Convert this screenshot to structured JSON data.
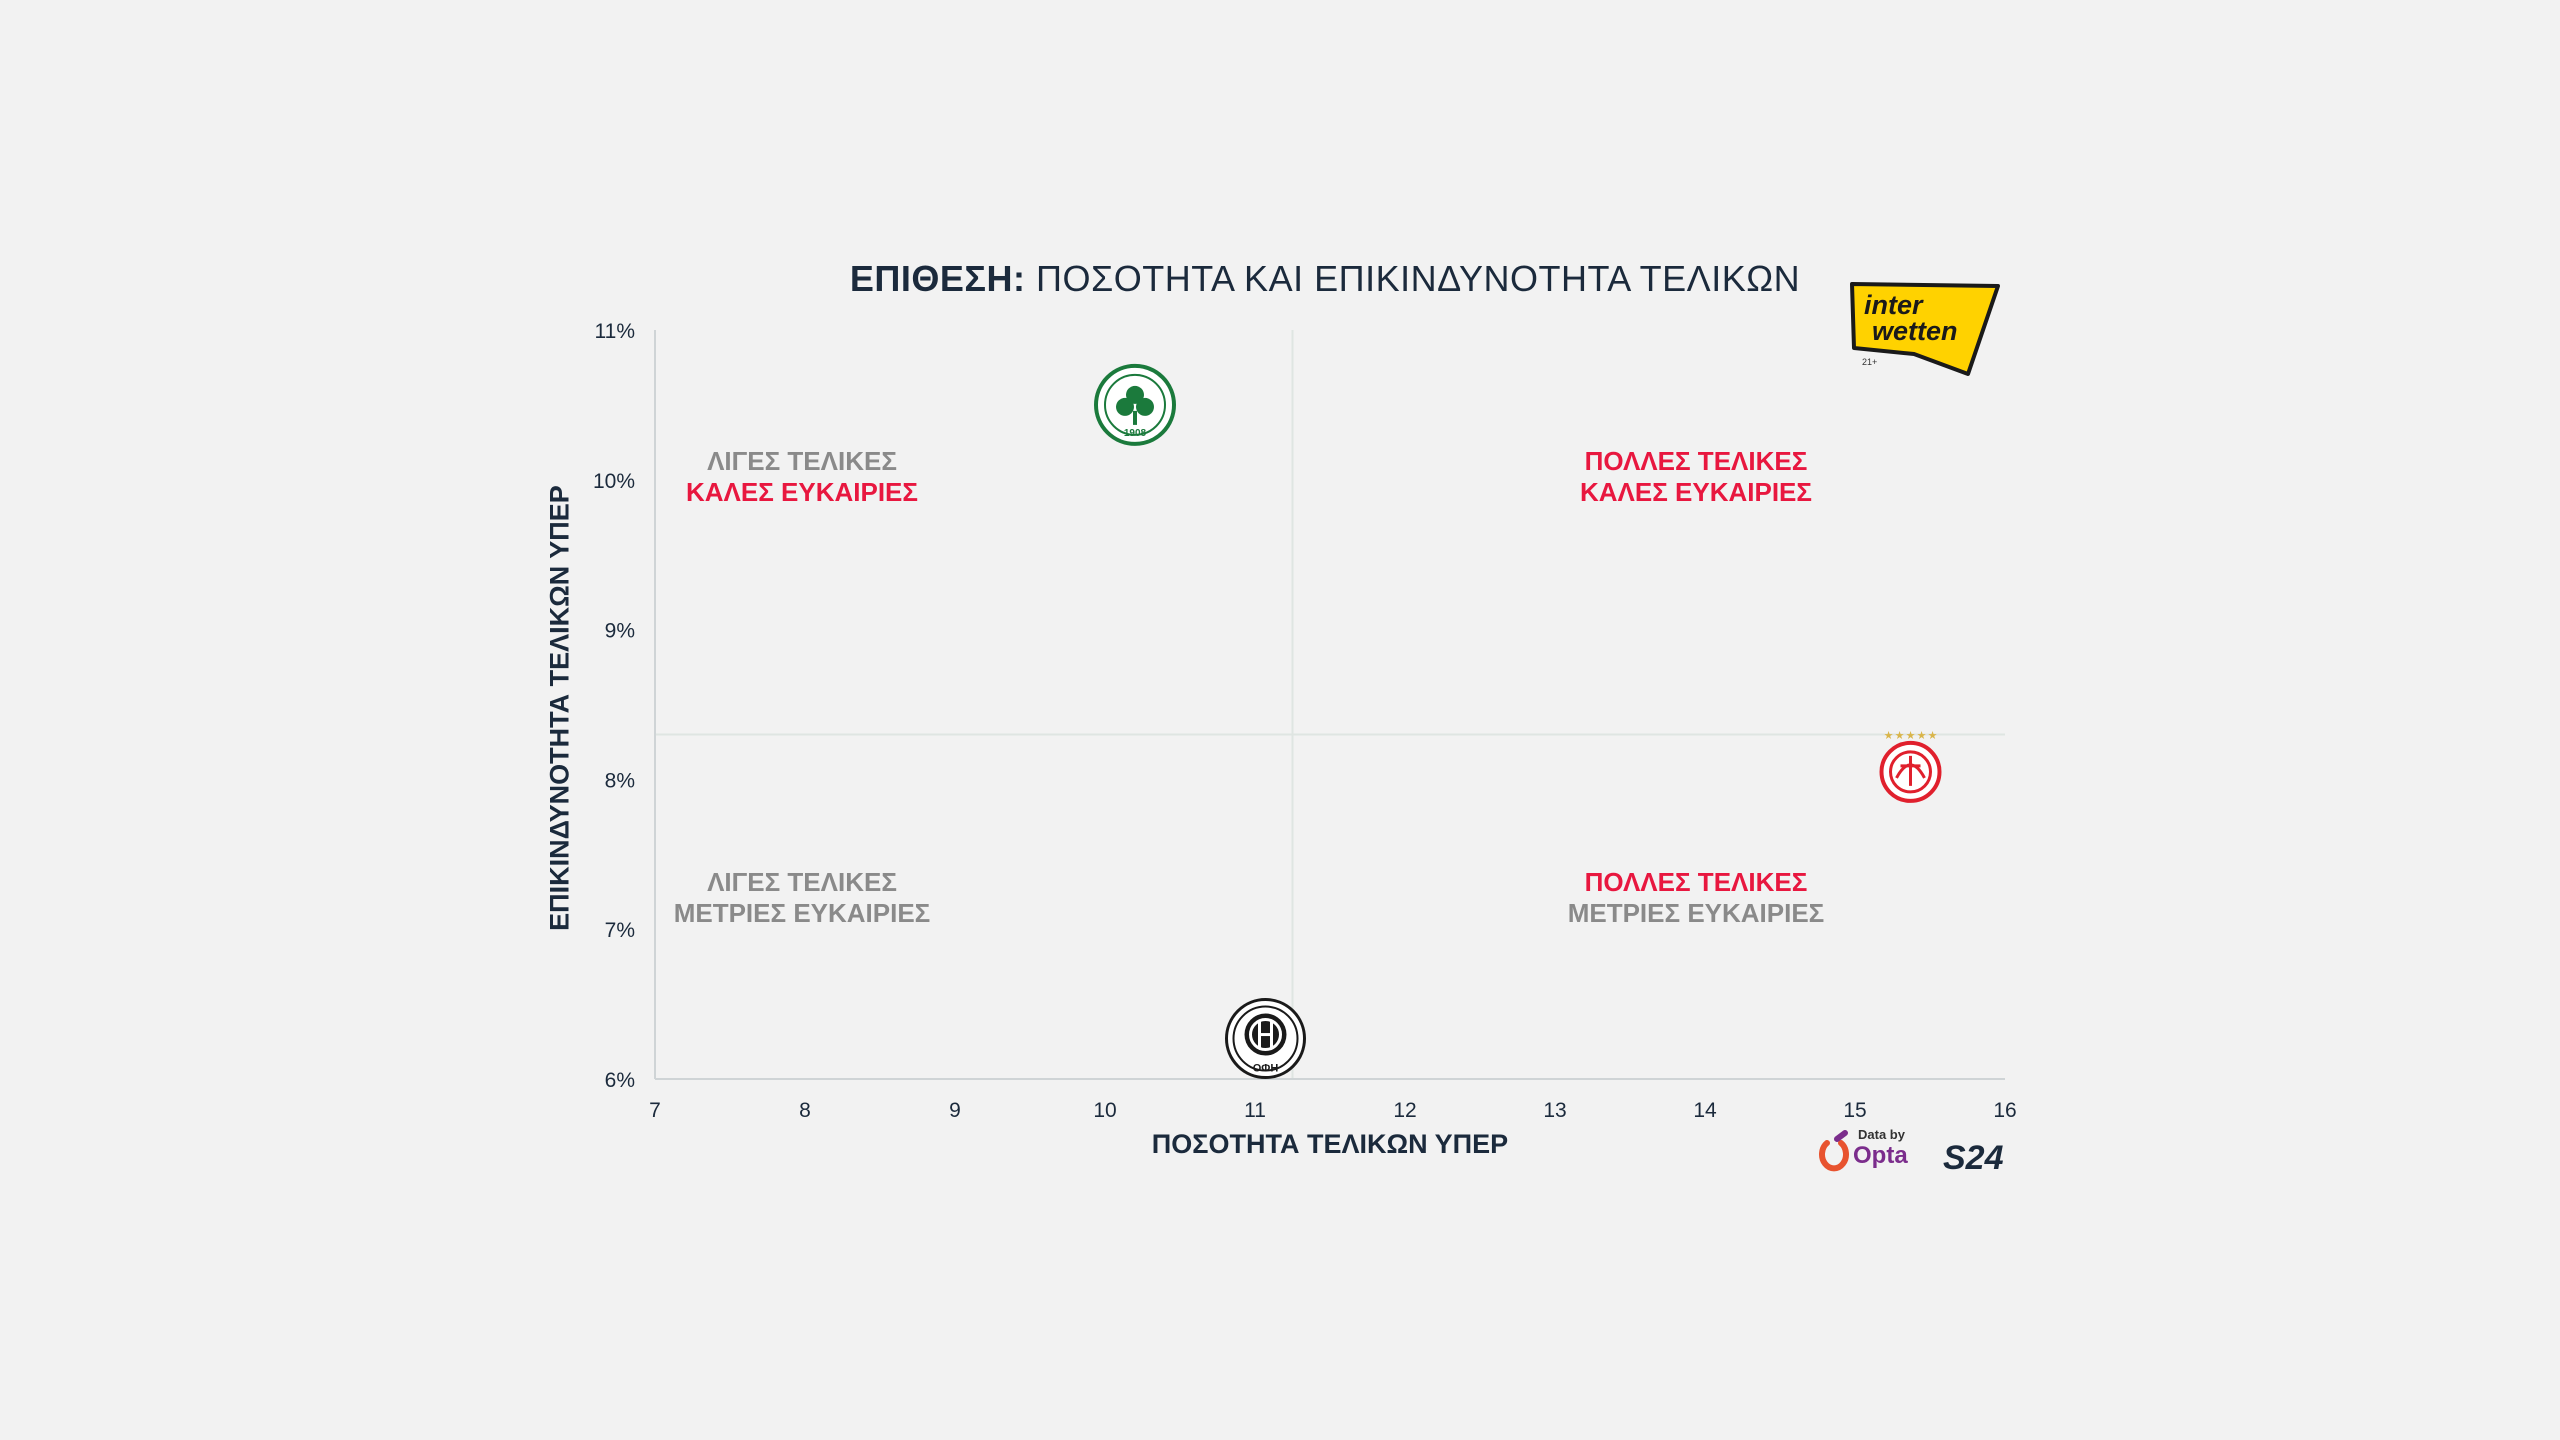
{
  "header": {
    "title_bold": "ΕΠΙΘΕΣΗ:",
    "title_rest": "ΠΟΣΟΤΗΤΑ ΚΑΙ ΕΠΙΚΙΝΔΥΝΟΤΗΤΑ ΤΕΛΙΚΩΝ"
  },
  "quadrants": {
    "top_left": {
      "line1": "ΛΙΓΕΣ ΤΕΛΙΚΕΣ",
      "line2": "ΚΑΛΕΣ ΕΥΚΑΙΡΙΕΣ"
    },
    "top_right": {
      "line1": "ΠΟΛΛΕΣ ΤΕΛΙΚΕΣ",
      "line2": "ΚΑΛΕΣ ΕΥΚΑΙΡΙΕΣ"
    },
    "bottom_left": {
      "line1": "ΛΙΓΕΣ ΤΕΛΙΚΕΣ",
      "line2": "ΜΕΤΡΙΕΣ ΕΥΚΑΙΡΙΕΣ"
    },
    "bottom_right": {
      "line1": "ΠΟΛΛΕΣ ΤΕΛΙΚΕΣ",
      "line2": "ΜΕΤΡΙΕΣ ΕΥΚΑΙΡΙΕΣ"
    }
  },
  "sponsor": {
    "line1": "inter",
    "line2": "wetten",
    "age": "21+"
  },
  "credits": {
    "data_by": "Data by",
    "opta": "Opta",
    "brand": "S24"
  },
  "colors": {
    "accent": "#e8173f",
    "text": "#1b2a3c",
    "grid": "#dfe5e2",
    "background": "#f2f2f2",
    "green": "#1b7a3c",
    "red": "#e0202d",
    "black": "#1a1a1a"
  },
  "chart_data": {
    "type": "scatter",
    "title": "ΕΠΙΘΕΣΗ: ΠΟΣΟΤΗΤΑ ΚΑΙ ΕΠΙΚΙΝΔΥΝΟΤΗΤΑ ΤΕΛΙΚΩΝ",
    "xlabel": "ΠΟΣΟΤΗΤΑ ΤΕΛΙΚΩΝ ΥΠΕΡ",
    "ylabel": "ΕΠΙΚΙΝΔΥΝΟΤΗΤΑ ΤΕΛΙΚΩΝ ΥΠΕΡ",
    "xlim": [
      7,
      16
    ],
    "ylim": [
      6,
      11
    ],
    "xticks": [
      7,
      8,
      9,
      10,
      11,
      12,
      13,
      14,
      15,
      16
    ],
    "yticks": [
      6,
      7,
      8,
      9,
      10,
      11
    ],
    "ytick_labels": [
      "6%",
      "7%",
      "8%",
      "9%",
      "10%",
      "11%"
    ],
    "quadrant_split": {
      "x": 11.25,
      "y": 8.3
    },
    "points": [
      {
        "team": "panathinaikos-crest",
        "x": 10.2,
        "y": 10.5,
        "crest_text": "1908"
      },
      {
        "team": "olympiacos-crest",
        "x": 15.37,
        "y": 8.05
      },
      {
        "team": "ofi-crest",
        "x": 11.07,
        "y": 6.27,
        "crest_text": "ΟΦΗ"
      }
    ]
  }
}
